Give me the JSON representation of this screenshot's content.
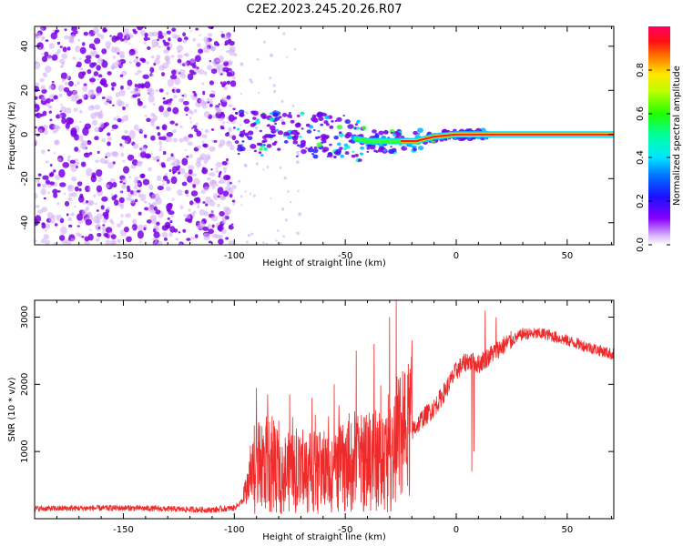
{
  "title": "C2E2.2023.245.20.26.R07",
  "colors": {
    "snr_line": "#ee2b2b",
    "spectrogram_noise": "#7a00e6",
    "spectrogram_faint": "#cfa9f5",
    "axis": "#000000"
  },
  "chart_data": [
    {
      "type": "heatmap",
      "xlabel": "Height of straight line (km)",
      "ylabel": "Frequency (Hz)",
      "xlim": [
        -190,
        71
      ],
      "ylim": [
        -50,
        49
      ],
      "xticks": [
        -150,
        -100,
        -50,
        0,
        50
      ],
      "yticks": [
        -40,
        -20,
        0,
        20,
        40
      ],
      "x_tick_labels": [
        "-150",
        "-100",
        "-50",
        "0",
        "50"
      ],
      "y_tick_labels": [
        "-40",
        "-20",
        "0",
        "20",
        "40"
      ],
      "colorbar": {
        "label": "Normalized spectral amplitude",
        "range": [
          0,
          1
        ],
        "ticks": [
          0.0,
          0.2,
          0.4,
          0.6,
          0.8
        ],
        "tick_labels": [
          "0.0",
          "0.2",
          "0.4",
          "0.6",
          "0.8"
        ],
        "colormap": "hsv-rainbow (white-violet low to red high)"
      },
      "features": {
        "noise_region_x": [
          -190,
          -100
        ],
        "signal_track": [
          {
            "x": -100,
            "freq": 1
          },
          {
            "x": -75,
            "freq": 0
          },
          {
            "x": -50,
            "freq": -1
          },
          {
            "x": -40,
            "freq": -3
          },
          {
            "x": -25,
            "freq": -3
          },
          {
            "x": -18,
            "freq": -3
          },
          {
            "x": -10,
            "freq": -1
          },
          {
            "x": 0,
            "freq": 0
          },
          {
            "x": 10,
            "freq": 0
          },
          {
            "x": 20,
            "freq": 0
          },
          {
            "x": 50,
            "freq": 0
          },
          {
            "x": 70,
            "freq": 0
          }
        ]
      }
    },
    {
      "type": "line",
      "xlabel": "Height of straight line (km)",
      "ylabel": "SNR (10 * v/v)",
      "xlim": [
        -190,
        71
      ],
      "ylim": [
        0,
        3250
      ],
      "xticks": [
        -150,
        -100,
        -50,
        0,
        50
      ],
      "yticks": [
        1000,
        2000,
        3000
      ],
      "x_tick_labels": [
        "-150",
        "-100",
        "-50",
        "0",
        "50"
      ],
      "y_tick_labels": [
        "1000",
        "2000",
        "3000"
      ],
      "series": [
        {
          "trend": [
            {
              "x": -190,
              "y": 150
            },
            {
              "x": -150,
              "y": 160
            },
            {
              "x": -110,
              "y": 130
            },
            {
              "x": -100,
              "y": 160
            },
            {
              "x": -95,
              "y": 300
            },
            {
              "x": -90,
              "y": 750
            },
            {
              "x": -80,
              "y": 700
            },
            {
              "x": -70,
              "y": 650
            },
            {
              "x": -60,
              "y": 700
            },
            {
              "x": -50,
              "y": 750
            },
            {
              "x": -40,
              "y": 850
            },
            {
              "x": -30,
              "y": 900
            },
            {
              "x": -25,
              "y": 1050
            },
            {
              "x": -20,
              "y": 1300
            },
            {
              "x": -15,
              "y": 1500
            },
            {
              "x": -10,
              "y": 1650
            },
            {
              "x": -5,
              "y": 1900
            },
            {
              "x": 0,
              "y": 2200
            },
            {
              "x": 5,
              "y": 2350
            },
            {
              "x": 10,
              "y": 2300
            },
            {
              "x": 20,
              "y": 2550
            },
            {
              "x": 30,
              "y": 2750
            },
            {
              "x": 40,
              "y": 2750
            },
            {
              "x": 50,
              "y": 2650
            },
            {
              "x": 60,
              "y": 2550
            },
            {
              "x": 70,
              "y": 2450
            }
          ],
          "spikes": [
            {
              "x": -90,
              "y": 1950
            },
            {
              "x": -85,
              "y": 1850
            },
            {
              "x": -75,
              "y": 1850
            },
            {
              "x": -65,
              "y": 1800
            },
            {
              "x": -55,
              "y": 2000
            },
            {
              "x": -45,
              "y": 2500
            },
            {
              "x": -37,
              "y": 2600
            },
            {
              "x": -30,
              "y": 3000
            },
            {
              "x": -27,
              "y": 3250
            },
            {
              "x": -20,
              "y": 2650
            },
            {
              "x": 8,
              "y": 3100
            },
            {
              "x": 13,
              "y": 3100
            },
            {
              "x": 18,
              "y": 3000
            }
          ],
          "dips": [
            {
              "x": 7,
              "y": 700
            },
            {
              "x": 8,
              "y": 1000
            }
          ]
        }
      ]
    }
  ]
}
